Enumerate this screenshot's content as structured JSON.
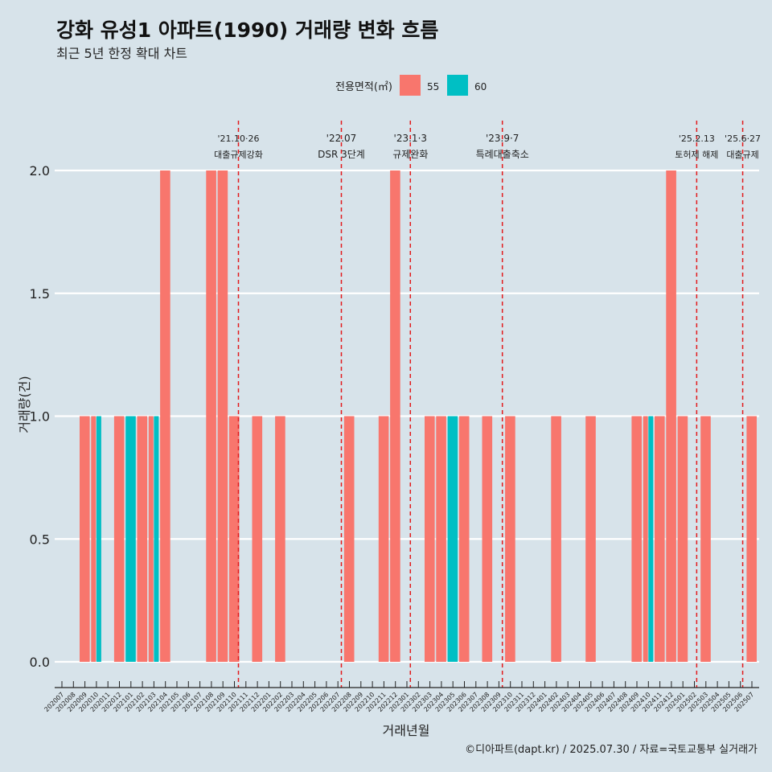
{
  "title": "강화 유성1 아파트(1990) 거래량 변화 흐름",
  "subtitle": "최근 5년 한정 확대 차트",
  "caption": "©디아파트(dapt.kr) / 2025.07.30 / 자료=국토교통부 실거래가",
  "colors": {
    "background": "#d7e3ea",
    "series_55": "#f8766d",
    "series_60": "#00bfc4",
    "event_line": "#e31a1c"
  },
  "chart_data": {
    "type": "bar",
    "title": "강화 유성1 아파트(1990) 거래량 변화 흐름",
    "subtitle": "최근 5년 한정 확대 차트",
    "xlabel": "거래년월",
    "ylabel": "거래량(건)",
    "ylim": [
      0,
      2.0
    ],
    "yticks": [
      "0.0",
      "0.5",
      "1.0",
      "1.5",
      "2.0"
    ],
    "grid": true,
    "legend": {
      "title": "전용면적(㎡)",
      "position": "top",
      "entries": [
        "55",
        "60"
      ]
    },
    "categories": [
      "202007",
      "202008",
      "202009",
      "202010",
      "202011",
      "202012",
      "202101",
      "202102",
      "202103",
      "202104",
      "202105",
      "202106",
      "202107",
      "202108",
      "202109",
      "202110",
      "202111",
      "202112",
      "202201",
      "202202",
      "202203",
      "202204",
      "202205",
      "202206",
      "202207",
      "202208",
      "202209",
      "202210",
      "202211",
      "202212",
      "202301",
      "202302",
      "202303",
      "202304",
      "202305",
      "202306",
      "202307",
      "202308",
      "202309",
      "202310",
      "202311",
      "202312",
      "202401",
      "202402",
      "202403",
      "202404",
      "202405",
      "202406",
      "202407",
      "202408",
      "202409",
      "202410",
      "202411",
      "202412",
      "202501",
      "202502",
      "202503",
      "202504",
      "202505",
      "202506",
      "202507"
    ],
    "series": [
      {
        "name": "55",
        "values": [
          0,
          0,
          1,
          1,
          0,
          1,
          0,
          1,
          1,
          2,
          0,
          0,
          0,
          2,
          2,
          1,
          0,
          1,
          0,
          1,
          0,
          0,
          0,
          0,
          0,
          1,
          0,
          0,
          1,
          2,
          0,
          0,
          1,
          1,
          0,
          1,
          0,
          1,
          0,
          1,
          0,
          0,
          0,
          1,
          0,
          0,
          1,
          0,
          0,
          0,
          1,
          1,
          1,
          2,
          1,
          0,
          1,
          0,
          0,
          0,
          1
        ]
      },
      {
        "name": "60",
        "values": [
          0,
          0,
          0,
          1,
          0,
          0,
          1,
          0,
          1,
          0,
          0,
          0,
          0,
          0,
          0,
          0,
          0,
          0,
          0,
          0,
          0,
          0,
          0,
          0,
          0,
          0,
          0,
          0,
          0,
          0,
          0,
          0,
          0,
          0,
          1,
          0,
          0,
          0,
          0,
          0,
          0,
          0,
          0,
          0,
          0,
          0,
          0,
          0,
          0,
          0,
          0,
          1,
          0,
          0,
          0,
          0,
          0,
          0,
          0,
          0,
          0
        ]
      }
    ],
    "annotations": [
      {
        "x": 15.35,
        "date": "'21.10·26",
        "label": "대출규제강화"
      },
      {
        "x": 24.3,
        "date": "'22.07",
        "label": "DSR 3단계"
      },
      {
        "x": 30.3,
        "date": "'23.1·3",
        "label": "규제완화"
      },
      {
        "x": 38.3,
        "date": "'23.9·7",
        "label": "특례대출축소"
      },
      {
        "x": 55.2,
        "date": "'25.2.13",
        "label": "토허제 해제"
      },
      {
        "x": 59.2,
        "date": "'25.6·27",
        "label": "대출규제"
      }
    ]
  }
}
